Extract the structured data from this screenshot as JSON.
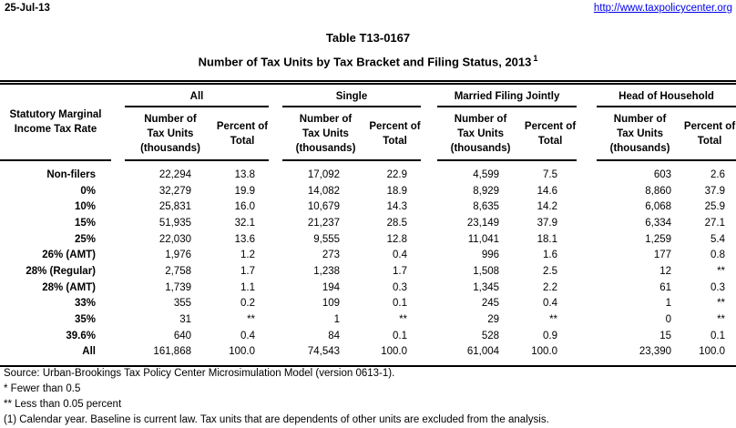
{
  "header": {
    "date": "25-Jul-13",
    "url": "http://www.taxpolicycenter.org"
  },
  "title": {
    "line1": "Table T13-0167",
    "line2": "Number of Tax Units by Tax Bracket and Filing Status, 2013",
    "superscript": "1"
  },
  "table": {
    "row_header": "Statutory Marginal\nIncome Tax Rate",
    "groups": [
      "All",
      "Single",
      "Married Filing Jointly",
      "Head of Household"
    ],
    "subheaders": {
      "number": "Number of\nTax Units\n(thousands)",
      "percent": "Percent of\nTotal"
    },
    "rows": [
      {
        "label": "Non-filers",
        "values": [
          "22,294",
          "13.8",
          "17,092",
          "22.9",
          "4,599",
          "7.5",
          "603",
          "2.6"
        ]
      },
      {
        "label": "0%",
        "values": [
          "32,279",
          "19.9",
          "14,082",
          "18.9",
          "8,929",
          "14.6",
          "8,860",
          "37.9"
        ]
      },
      {
        "label": "10%",
        "values": [
          "25,831",
          "16.0",
          "10,679",
          "14.3",
          "8,635",
          "14.2",
          "6,068",
          "25.9"
        ]
      },
      {
        "label": "15%",
        "values": [
          "51,935",
          "32.1",
          "21,237",
          "28.5",
          "23,149",
          "37.9",
          "6,334",
          "27.1"
        ]
      },
      {
        "label": "25%",
        "values": [
          "22,030",
          "13.6",
          "9,555",
          "12.8",
          "11,041",
          "18.1",
          "1,259",
          "5.4"
        ]
      },
      {
        "label": "26% (AMT)",
        "values": [
          "1,976",
          "1.2",
          "273",
          "0.4",
          "996",
          "1.6",
          "177",
          "0.8"
        ]
      },
      {
        "label": "28% (Regular)",
        "values": [
          "2,758",
          "1.7",
          "1,238",
          "1.7",
          "1,508",
          "2.5",
          "12",
          "**"
        ]
      },
      {
        "label": "28% (AMT)",
        "values": [
          "1,739",
          "1.1",
          "194",
          "0.3",
          "1,345",
          "2.2",
          "61",
          "0.3"
        ]
      },
      {
        "label": "33%",
        "values": [
          "355",
          "0.2",
          "109",
          "0.1",
          "245",
          "0.4",
          "1",
          "**"
        ]
      },
      {
        "label": "35%",
        "values": [
          "31",
          "**",
          "1",
          "**",
          "29",
          "**",
          "0",
          "**"
        ]
      },
      {
        "label": "39.6%",
        "values": [
          "640",
          "0.4",
          "84",
          "0.1",
          "528",
          "0.9",
          "15",
          "0.1"
        ]
      },
      {
        "label": "All",
        "values": [
          "161,868",
          "100.0",
          "74,543",
          "100.0",
          "61,004",
          "100.0",
          "23,390",
          "100.0"
        ]
      }
    ]
  },
  "footnotes": [
    "Source: Urban-Brookings Tax Policy Center Microsimulation Model (version 0613-1).",
    "* Fewer than 0.5",
    "** Less than 0.05 percent",
    "(1) Calendar year. Baseline is current law. Tax units that are dependents of other units are excluded from the analysis."
  ],
  "colors": {
    "link": "#0000ee",
    "text": "#000000"
  }
}
